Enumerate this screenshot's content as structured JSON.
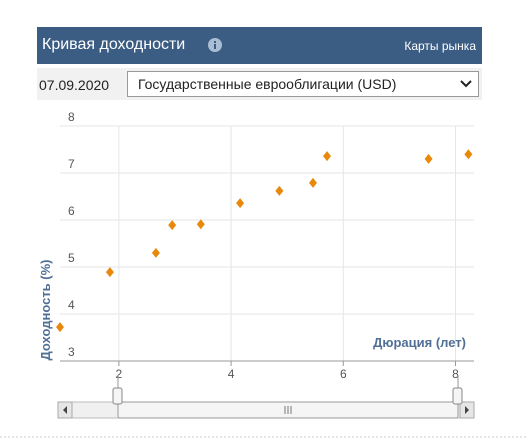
{
  "header": {
    "title": "Кривая доходности",
    "link": "Карты рынка"
  },
  "controls": {
    "date": "07.09.2020",
    "select": "Государственные еврооблигации (USD)"
  },
  "chart_data": {
    "type": "scatter",
    "x_label": "Дюрация (лет)",
    "y_label": "Доходность (%)",
    "x": [
      0.95,
      1.84,
      2.66,
      2.95,
      3.46,
      4.16,
      4.86,
      5.46,
      5.71,
      7.52,
      8.23
    ],
    "values": [
      3.72,
      4.89,
      5.3,
      5.89,
      5.91,
      6.36,
      6.62,
      6.79,
      7.36,
      7.3,
      7.4
    ],
    "color": "#e8890c",
    "xlim": [
      0.95,
      8.33
    ],
    "ylim": [
      3,
      8
    ],
    "xticks": [
      2,
      4,
      6,
      8
    ],
    "yticks": [
      3,
      4,
      5,
      6,
      7,
      8
    ],
    "grid": true
  }
}
